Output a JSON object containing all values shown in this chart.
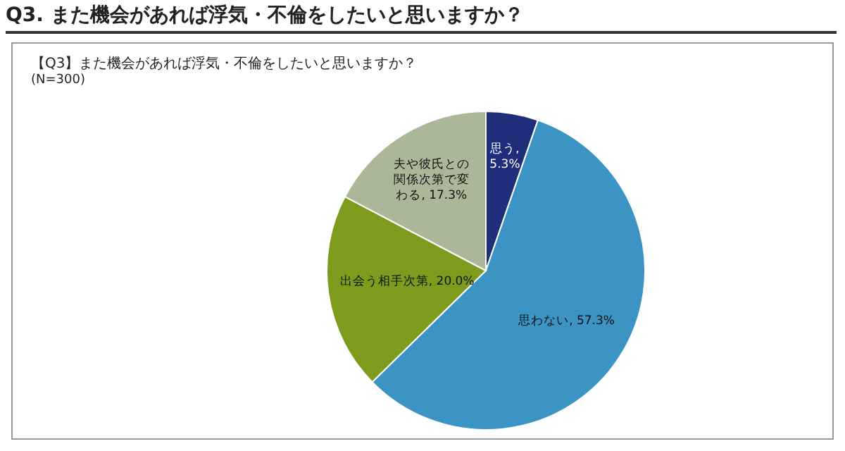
{
  "chart_data": {
    "type": "pie",
    "title": "Q3. また機会があれば浮気・不倫をしたいと思いますか？",
    "subtitle": "【Q3】また機会があれば浮気・不倫をしたいと思いますか？",
    "annotations": [
      "(N=300)"
    ],
    "categories": [
      "思う",
      "思わない",
      "出会う相手次第",
      "夫や彼氏との関係次第で変わる"
    ],
    "values": [
      5.3,
      57.3,
      20.0,
      17.3
    ],
    "colors": [
      "#1f2d7b",
      "#3b94c4",
      "#7d9b1c",
      "#aab799"
    ],
    "value_labels": [
      ", 5.3%",
      ", 57.3%",
      ", 20.0%",
      ", 17.3%"
    ]
  }
}
